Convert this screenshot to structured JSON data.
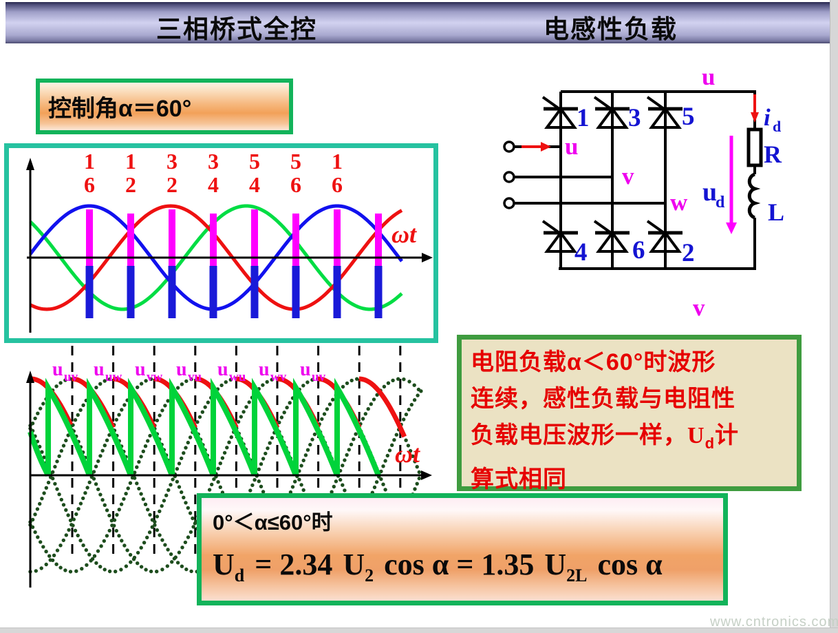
{
  "header": {
    "title_left": "三相桥式全控",
    "title_right": "电感性负载"
  },
  "control_box": {
    "label": "控制角α＝60°"
  },
  "plot1": {
    "axis_label": "ωt",
    "firing_pairs": [
      [
        "1",
        "6"
      ],
      [
        "1",
        "2"
      ],
      [
        "3",
        "2"
      ],
      [
        "3",
        "4"
      ],
      [
        "5",
        "4"
      ],
      [
        "5",
        "6"
      ],
      [
        "1",
        "6"
      ]
    ]
  },
  "plot2": {
    "axis_label": "ωt",
    "voltage_labels": [
      [
        "u",
        "uv"
      ],
      [
        "u",
        "uw"
      ],
      [
        "u",
        "vw"
      ],
      [
        "u",
        "vu"
      ],
      [
        "u",
        "wu"
      ],
      [
        "u",
        "wv"
      ],
      [
        "u",
        "uv"
      ]
    ]
  },
  "circuit": {
    "thyristor_labels": [
      "1",
      "3",
      "5",
      "4",
      "6",
      "2"
    ],
    "input_phase_labels": [
      "u",
      "v",
      "w"
    ],
    "top_node_label": "u",
    "bottom_node_label": "v",
    "current_label": {
      "main": "i",
      "sub": "d"
    },
    "output_voltage_label": {
      "main": "u",
      "sub": "d"
    },
    "resistor_label": "R",
    "inductor_label": "L"
  },
  "note_box": {
    "line1": "电阻负载α＜60°时波形",
    "line2": "连续，感性负载与电阻性",
    "line3_a": "负载电压波形一样，",
    "line3_u": "U",
    "line3_sub": "d",
    "line3_b": "计",
    "line4": "算式相同"
  },
  "formula_box": {
    "condition": "0°＜α≤60°时",
    "u": "U",
    "u_sub": "d",
    "m1": "= 2.34",
    "u2": "U",
    "u2_sub": "2",
    "m2": "cos α = 1.35",
    "u3": "U",
    "u2l_sub": "2L",
    "m3": "cos α"
  },
  "watermark": "www.cntronics.com",
  "colors": {
    "teal_border": "#26c2a0",
    "green_border_bright": "#12b35a",
    "green_border_dark": "#3f9c3f",
    "phase_u": "#1111ee",
    "phase_v": "#ee1111",
    "phase_w": "#00dd44",
    "pulse_magenta": "#ff00ff",
    "pulse_blue": "#1a1ad8",
    "line_voltage_dots": "#1d4d1d",
    "ud_red": "#ee1111",
    "ud_green": "#00d33a",
    "label_magenta": "#ee00ee",
    "circuit_blue": "#1414d2",
    "number_red": "#ee1111"
  }
}
